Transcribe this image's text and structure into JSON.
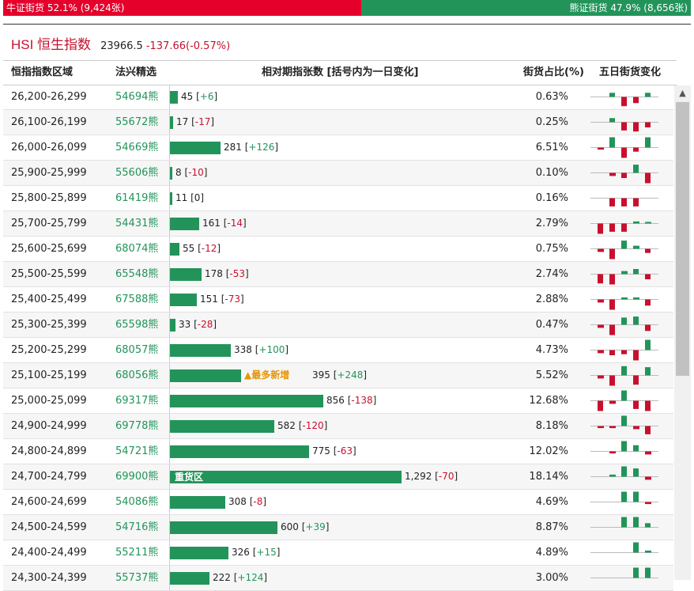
{
  "sentiment": {
    "bull_label": "牛证街货 52.1% (9,424张)",
    "bear_label": "熊证街货 47.9% (8,656张)",
    "bull_share": 0.521
  },
  "index": {
    "name": "HSI 恒生指数",
    "price": "23966.5",
    "change": "-137.66(-0.57%)"
  },
  "table": {
    "headers": [
      "恒指指数区域",
      "法兴精选",
      "相对期指张数 [括号内为一日变化]",
      "街货占比(%)",
      "五日街货变化"
    ],
    "max_contracts": 1292,
    "rows": [
      {
        "range": "26,200-26,299",
        "code": "54694熊",
        "contracts": 45,
        "contracts_text": "45",
        "delta": "+6",
        "pct": "0.63%",
        "spark": [
          0,
          0.4,
          -0.9,
          -0.6,
          0.4
        ]
      },
      {
        "range": "26,100-26,199",
        "code": "55672熊",
        "contracts": 17,
        "contracts_text": "17",
        "delta": "-17",
        "pct": "0.25%",
        "spark": [
          0,
          0.4,
          -0.8,
          -0.9,
          -0.5
        ]
      },
      {
        "range": "26,000-26,099",
        "code": "54669熊",
        "contracts": 281,
        "contracts_text": "281",
        "delta": "+126",
        "pct": "6.51%",
        "spark": [
          -0.2,
          1.0,
          -1.0,
          -0.4,
          1.0
        ]
      },
      {
        "range": "25,900-25,999",
        "code": "55606熊",
        "contracts": 8,
        "contracts_text": "8",
        "delta": "-10",
        "pct": "0.10%",
        "spark": [
          0,
          -0.3,
          -0.5,
          0.8,
          -1.0
        ]
      },
      {
        "range": "25,800-25,899",
        "code": "61419熊",
        "contracts": 11,
        "contracts_text": "11",
        "delta": "0",
        "pct": "0.16%",
        "spark": [
          0,
          -0.8,
          -0.8,
          -0.8,
          0
        ]
      },
      {
        "range": "25,700-25,799",
        "code": "54431熊",
        "contracts": 161,
        "contracts_text": "161",
        "delta": "-14",
        "pct": "2.79%",
        "spark": [
          -1.0,
          -0.8,
          -0.8,
          0.2,
          0.1
        ]
      },
      {
        "range": "25,600-25,699",
        "code": "68074熊",
        "contracts": 55,
        "contracts_text": "55",
        "delta": "-12",
        "pct": "0.75%",
        "spark": [
          -0.3,
          -1.0,
          0.8,
          0.3,
          -0.4
        ]
      },
      {
        "range": "25,500-25,599",
        "code": "65548熊",
        "contracts": 178,
        "contracts_text": "178",
        "delta": "-53",
        "pct": "2.74%",
        "spark": [
          -0.9,
          -1.0,
          0.3,
          0.5,
          -0.5
        ]
      },
      {
        "range": "25,400-25,499",
        "code": "67588熊",
        "contracts": 151,
        "contracts_text": "151",
        "delta": "-73",
        "pct": "2.88%",
        "spark": [
          -0.3,
          -1.0,
          0.2,
          0.2,
          -0.6
        ]
      },
      {
        "range": "25,300-25,399",
        "code": "65598熊",
        "contracts": 33,
        "contracts_text": "33",
        "delta": "-28",
        "pct": "0.47%",
        "spark": [
          -0.3,
          -1.0,
          0.7,
          0.8,
          -0.6
        ]
      },
      {
        "range": "25,200-25,299",
        "code": "68057熊",
        "contracts": 338,
        "contracts_text": "338",
        "delta": "+100",
        "pct": "4.73%",
        "spark": [
          -0.3,
          -0.5,
          -0.4,
          -1.0,
          1.0
        ]
      },
      {
        "range": "25,100-25,199",
        "code": "68056熊",
        "contracts": 395,
        "contracts_text": "395",
        "delta": "+248",
        "pct": "5.52%",
        "new_tag": "▲最多新增",
        "spark": [
          -0.3,
          -1.0,
          0.9,
          -0.9,
          0.8
        ]
      },
      {
        "range": "25,000-25,099",
        "code": "69317熊",
        "contracts": 856,
        "contracts_text": "856",
        "delta": "-138",
        "pct": "12.68%",
        "spark": [
          -1.0,
          -0.3,
          1.0,
          -0.8,
          -1.0
        ]
      },
      {
        "range": "24,900-24,999",
        "code": "69778熊",
        "contracts": 582,
        "contracts_text": "582",
        "delta": "-120",
        "pct": "8.18%",
        "spark": [
          -0.2,
          -0.2,
          1.0,
          -0.3,
          -0.8
        ]
      },
      {
        "range": "24,800-24,899",
        "code": "54721熊",
        "contracts": 775,
        "contracts_text": "775",
        "delta": "-63",
        "pct": "12.02%",
        "spark": [
          0,
          -0.2,
          1.0,
          0.6,
          -0.3
        ]
      },
      {
        "range": "24,700-24,799",
        "code": "69900熊",
        "contracts": 1292,
        "contracts_text": "1,292",
        "delta": "-70",
        "pct": "18.14%",
        "bar_label": "重货区",
        "spark": [
          0,
          0.2,
          1.0,
          0.8,
          -0.3
        ]
      },
      {
        "range": "24,600-24,699",
        "code": "54086熊",
        "contracts": 308,
        "contracts_text": "308",
        "delta": "-8",
        "pct": "4.69%",
        "spark": [
          0,
          0,
          1.0,
          1.0,
          -0.2
        ]
      },
      {
        "range": "24,500-24,599",
        "code": "54716熊",
        "contracts": 600,
        "contracts_text": "600",
        "delta": "+39",
        "pct": "8.87%",
        "spark": [
          0,
          0,
          1.0,
          1.0,
          0.4
        ]
      },
      {
        "range": "24,400-24,499",
        "code": "55211熊",
        "contracts": 326,
        "contracts_text": "326",
        "delta": "+15",
        "pct": "4.89%",
        "spark": [
          0,
          0,
          0,
          1.0,
          0.2
        ]
      },
      {
        "range": "24,300-24,399",
        "code": "55737熊",
        "contracts": 222,
        "contracts_text": "222",
        "delta": "+124",
        "pct": "3.00%",
        "spark": [
          0,
          0,
          0,
          1.0,
          1.0
        ]
      }
    ]
  },
  "colors": {
    "red": "#c8102e",
    "green": "#22945a",
    "new_tag": "#e69500"
  }
}
